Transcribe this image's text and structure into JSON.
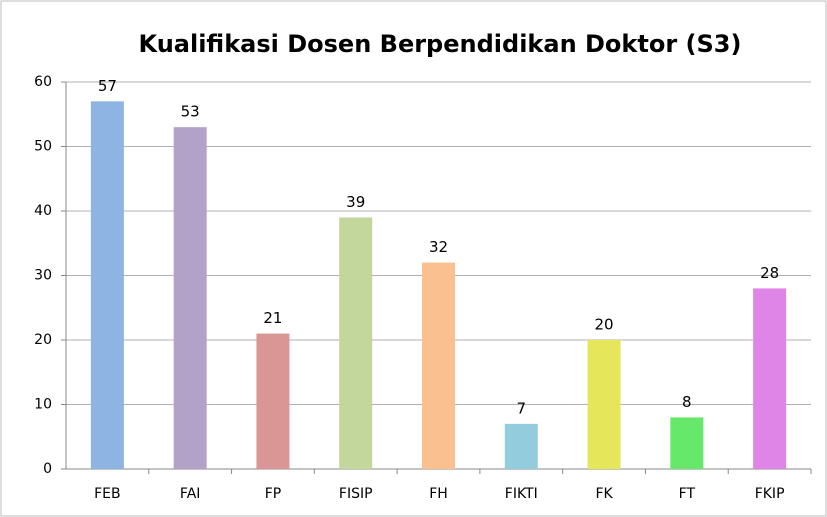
{
  "chart_data": {
    "type": "bar",
    "title": "Kualifikasi Dosen Berpendidikan Doktor (S3)",
    "categories": [
      "FEB",
      "FAI",
      "FP",
      "FISIP",
      "FH",
      "FIKTI",
      "FK",
      "FT",
      "FKIP"
    ],
    "values": [
      57,
      53,
      21,
      39,
      32,
      7,
      20,
      8,
      28
    ],
    "colors": [
      "#8eb4e3",
      "#b3a2c7",
      "#d99694",
      "#c3d69b",
      "#fac090",
      "#93cddd",
      "#e6e65a",
      "#66e86a",
      "#e085e8"
    ],
    "ylim": [
      0,
      60
    ],
    "yticks": [
      0,
      10,
      20,
      30,
      40,
      50,
      60
    ],
    "grid": true
  }
}
